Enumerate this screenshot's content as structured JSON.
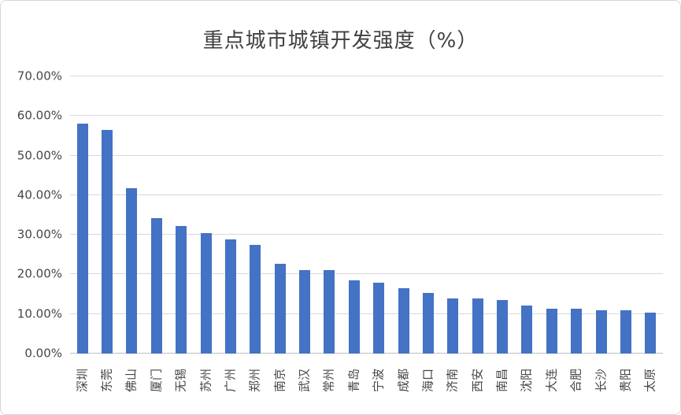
{
  "chart_data": {
    "type": "bar",
    "title": "重点城市城镇开发强度（%）",
    "categories": [
      "深圳",
      "东莞",
      "佛山",
      "厦门",
      "无锡",
      "苏州",
      "广州",
      "郑州",
      "南京",
      "武汉",
      "常州",
      "青岛",
      "宁波",
      "成都",
      "海口",
      "济南",
      "西安",
      "南昌",
      "沈阳",
      "大连",
      "合肥",
      "长沙",
      "贵阳",
      "太原"
    ],
    "values": [
      58.0,
      56.4,
      41.8,
      34.2,
      32.2,
      30.5,
      28.8,
      27.4,
      22.7,
      21.1,
      21.0,
      18.5,
      17.9,
      16.5,
      15.3,
      14.0,
      14.0,
      13.6,
      12.1,
      11.4,
      11.3,
      10.9,
      10.9,
      10.4
    ],
    "ylim": [
      0,
      70
    ],
    "y_ticks": [
      {
        "value": 0,
        "label": "0.00%"
      },
      {
        "value": 10,
        "label": "10.00%"
      },
      {
        "value": 20,
        "label": "20.00%"
      },
      {
        "value": 30,
        "label": "30.00%"
      },
      {
        "value": 40,
        "label": "40.00%"
      },
      {
        "value": 50,
        "label": "50.00%"
      },
      {
        "value": 60,
        "label": "60.00%"
      },
      {
        "value": 70,
        "label": "70.00%"
      }
    ],
    "bar_color": "#4472C4",
    "grid": true,
    "legend": false,
    "xlabel": "",
    "ylabel": ""
  }
}
